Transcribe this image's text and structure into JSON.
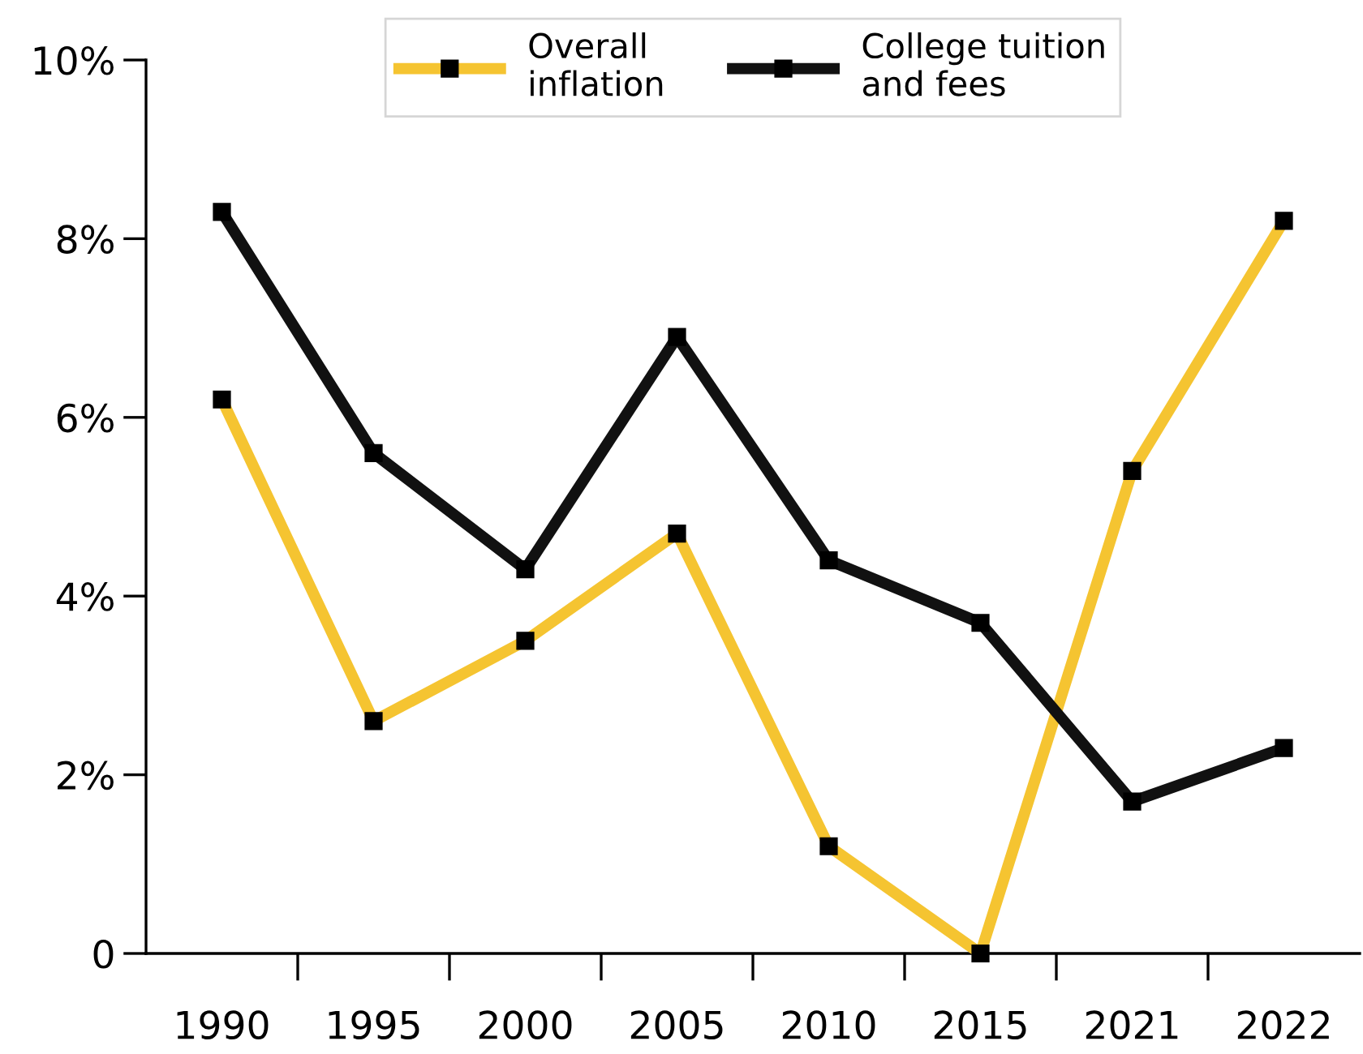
{
  "chart_data": {
    "type": "line",
    "categories": [
      "1990",
      "1995",
      "2000",
      "2005",
      "2010",
      "2015",
      "2021",
      "2022"
    ],
    "series": [
      {
        "name": "Overall\ninflation",
        "color": "#f5c431",
        "values": [
          6.2,
          2.6,
          3.5,
          4.7,
          1.2,
          0,
          5.4,
          8.2
        ]
      },
      {
        "name": "College tuition\nand fees",
        "color": "#111111",
        "values": [
          8.3,
          5.6,
          4.3,
          6.9,
          4.4,
          3.7,
          1.7,
          2.3
        ]
      }
    ],
    "ylim": [
      0,
      10
    ],
    "yticks": [
      {
        "value": 0,
        "label": "0"
      },
      {
        "value": 2,
        "label": "2%"
      },
      {
        "value": 4,
        "label": "4%"
      },
      {
        "value": 6,
        "label": "6%"
      },
      {
        "value": 8,
        "label": "8%"
      },
      {
        "value": 10,
        "label": "10%"
      }
    ],
    "marker": "square",
    "line_style": "solid",
    "grid": false,
    "legend": "top"
  }
}
